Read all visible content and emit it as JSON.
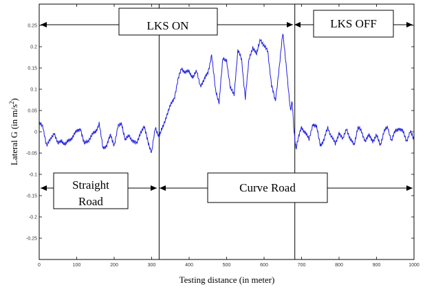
{
  "chart_data": {
    "type": "line",
    "xlabel": "Testing distance (in meter)",
    "ylabel_main": "Lateral G (in m/s",
    "ylabel_sup": "2",
    "ylabel_close": ")",
    "xlim": [
      0,
      1000
    ],
    "ylim": [
      -0.3,
      0.3
    ],
    "x_ticks": [
      0,
      100,
      200,
      300,
      400,
      500,
      600,
      700,
      800,
      900,
      1000
    ],
    "x_tick_labels": [
      "0",
      "100",
      "200",
      "300",
      "400",
      "500",
      "600",
      "700",
      "800",
      "900",
      "1000"
    ],
    "y_ticks": [
      0.25,
      0.2,
      0.15,
      0.1,
      0.05,
      0,
      -0.05,
      -0.1,
      -0.15,
      -0.2,
      -0.25
    ],
    "y_tick_labels": [
      "0.25",
      "0.2",
      "0.15",
      "0.1",
      "0.05",
      "0",
      "-0.05",
      "-0.1",
      "-0.15",
      "-0.2",
      "-0.25"
    ],
    "grid": false,
    "series": [
      {
        "color": "#1f1fdd",
        "x": [
          0,
          10,
          20,
          30,
          40,
          50,
          60,
          70,
          80,
          90,
          100,
          110,
          120,
          130,
          140,
          150,
          160,
          170,
          180,
          190,
          200,
          210,
          220,
          230,
          240,
          250,
          260,
          270,
          280,
          290,
          300,
          310,
          320,
          330,
          340,
          350,
          360,
          370,
          380,
          390,
          400,
          410,
          420,
          430,
          440,
          450,
          460,
          470,
          480,
          490,
          500,
          510,
          520,
          530,
          540,
          550,
          560,
          570,
          580,
          590,
          600,
          610,
          620,
          630,
          640,
          650,
          660,
          670,
          675,
          680,
          685,
          690,
          700,
          710,
          720,
          730,
          740,
          750,
          760,
          770,
          780,
          790,
          800,
          810,
          820,
          830,
          840,
          850,
          860,
          870,
          880,
          890,
          900,
          910,
          920,
          930,
          940,
          950,
          960,
          970,
          980,
          990,
          1000
        ],
        "y": [
          0.02,
          0.01,
          -0.03,
          -0.02,
          0.0,
          -0.03,
          -0.02,
          -0.03,
          -0.02,
          -0.01,
          0.0,
          0.01,
          -0.03,
          -0.02,
          -0.01,
          0.0,
          0.02,
          -0.04,
          -0.03,
          -0.01,
          -0.03,
          0.01,
          0.02,
          -0.02,
          -0.01,
          -0.02,
          -0.03,
          0.0,
          0.01,
          -0.02,
          -0.05,
          0.01,
          -0.01,
          0.01,
          0.04,
          0.06,
          0.08,
          0.12,
          0.15,
          0.14,
          0.14,
          0.13,
          0.14,
          0.11,
          0.12,
          0.14,
          0.18,
          0.1,
          0.07,
          0.17,
          0.17,
          0.1,
          0.09,
          0.19,
          0.17,
          0.08,
          0.17,
          0.2,
          0.18,
          0.22,
          0.2,
          0.19,
          0.11,
          0.07,
          0.15,
          0.23,
          0.15,
          0.05,
          0.07,
          0.0,
          -0.04,
          -0.02,
          0.01,
          0.0,
          -0.02,
          0.02,
          0.01,
          -0.03,
          -0.02,
          0.01,
          -0.01,
          -0.03,
          0.0,
          -0.02,
          0.01,
          -0.02,
          -0.03,
          0.01,
          0.0,
          -0.02,
          -0.01,
          -0.02,
          -0.01,
          -0.03,
          0.0,
          0.01,
          -0.02,
          0.0,
          0.01,
          0.0,
          -0.02,
          0.0,
          -0.02
        ]
      }
    ],
    "annotations": {
      "lks_on": "LKS ON",
      "lks_off": "LKS OFF",
      "straight_road": [
        "Straight",
        "Road"
      ],
      "curve_road": "Curve Road"
    },
    "vertical_markers_x": [
      320,
      682
    ]
  }
}
